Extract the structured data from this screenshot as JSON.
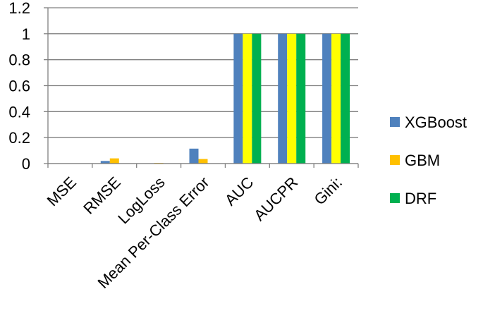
{
  "chart_data": {
    "type": "bar",
    "categories": [
      "MSE",
      "RMSE",
      "LogLoss",
      "Mean Per-Class Error",
      "AUC",
      "AUCPR",
      "Gini:"
    ],
    "series": [
      {
        "name": "XGBoost",
        "color": "#4F81BD",
        "values": [
          0.0005,
          0.02,
          0.002,
          0.115,
          1,
          1,
          1
        ]
      },
      {
        "name": "GBM",
        "color": "#FFC000",
        "values": [
          0.0015,
          0.04,
          0.005,
          0.035,
          1,
          1,
          1
        ]
      },
      {
        "name": "DRF",
        "color": "#00B050",
        "values": [
          0,
          0,
          0,
          0,
          1,
          1,
          1
        ]
      }
    ],
    "ylim": [
      0,
      1.2
    ],
    "yticks": [
      "0",
      "0.2",
      "0.4",
      "0.6",
      "0.8",
      "1",
      "1.2"
    ],
    "highlight_color": "#FFFF00",
    "grid": true,
    "legend": "right"
  }
}
